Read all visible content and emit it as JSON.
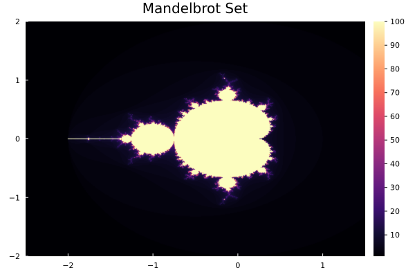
{
  "chart_data": {
    "type": "heatmap",
    "title": "Mandelbrot Set",
    "xlabel": "",
    "ylabel": "",
    "xlim": [
      -2.5,
      1.5
    ],
    "ylim": [
      -2,
      2
    ],
    "x_ticks": [
      "−2",
      "−1",
      "0",
      "1"
    ],
    "x_tick_values": [
      -2,
      -1,
      0,
      1
    ],
    "y_ticks": [
      "2",
      "1",
      "0",
      "−1",
      "−2"
    ],
    "y_tick_values": [
      2,
      1,
      0,
      -1,
      -2
    ],
    "grid": false,
    "legend": "colorbar-right",
    "colormap": "magma",
    "value_range": [
      1,
      100
    ],
    "max_iterations": 100,
    "colorbar_ticks": [
      "100",
      "90",
      "80",
      "70",
      "60",
      "50",
      "40",
      "30",
      "20",
      "10"
    ],
    "colorbar_tick_values": [
      100,
      90,
      80,
      70,
      60,
      50,
      40,
      30,
      20,
      10
    ],
    "colors": {
      "low": "#000004",
      "mid": "#b73779",
      "high": "#fcfdbf"
    }
  }
}
